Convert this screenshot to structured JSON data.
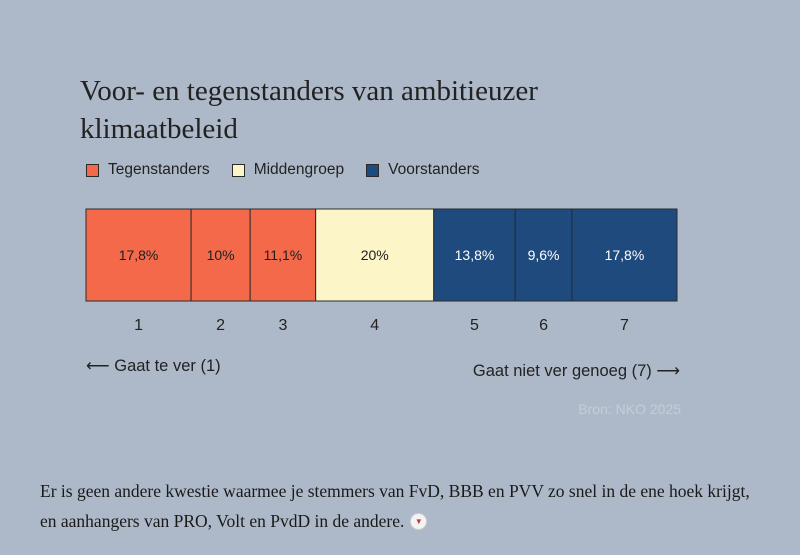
{
  "chart_data": {
    "type": "bar",
    "title": "Voor- en tegenstanders van ambitieuzer klimaatbeleid",
    "categories": [
      "1",
      "2",
      "3",
      "4",
      "5",
      "6",
      "7"
    ],
    "values": [
      17.8,
      10,
      11.1,
      20,
      13.8,
      9.6,
      17.8
    ],
    "value_labels": [
      "17,8%",
      "10%",
      "11,1%",
      "20%",
      "13,8%",
      "9,6%",
      "17,8%"
    ],
    "group_of_category": [
      0,
      0,
      0,
      1,
      2,
      2,
      2
    ],
    "series": [
      {
        "name": "Tegenstanders",
        "color": "#f4694a"
      },
      {
        "name": "Middengroep",
        "color": "#fbf5c7"
      },
      {
        "name": "Voorstanders",
        "color": "#1f4a7d"
      }
    ],
    "label_colors": [
      "#1e1e1e",
      "#1e1e1e",
      "#ffffff"
    ],
    "stacked_single_bar": true,
    "legend_position": "top-left",
    "scale_left_label": "⟵ Gaat te ver (1)",
    "scale_right_label": "Gaat niet ver genoeg (7) ⟶",
    "source": "Bron: NKO 2025"
  },
  "article": {
    "paragraph": "Er is geen andere kwestie waarmee je stemmers van FvD, BBB en PVV zo snel in de ene hoek krijgt, en aanhangers van PRO, Volt en PvdD in de andere.",
    "more_icon": "chevron-down-icon"
  }
}
